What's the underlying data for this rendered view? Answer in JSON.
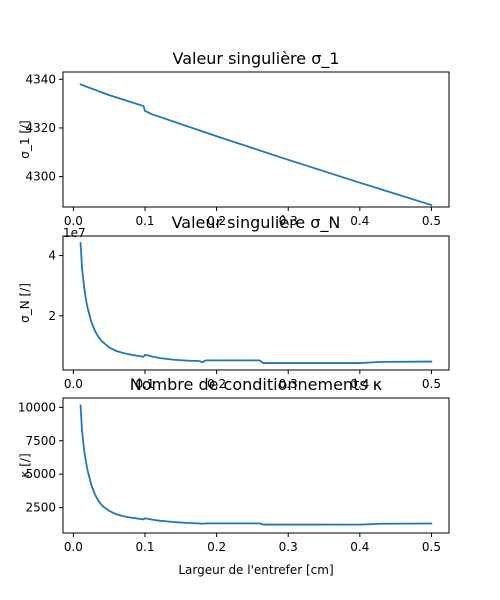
{
  "chart_data": [
    {
      "type": "line",
      "title": "Valeur singulière σ_1",
      "xlabel": "",
      "ylabel": "σ_1 [/]",
      "offset_text": "1e7",
      "xlim": [
        -0.0145,
        0.5245
      ],
      "ylim": [
        4287.5,
        4343.0
      ],
      "xticks": [
        0.0,
        0.1,
        0.2,
        0.3,
        0.4,
        0.5
      ],
      "xtick_labels": [
        "0.0",
        "0.1",
        "0.2",
        "0.3",
        "0.4",
        "0.5"
      ],
      "yticks": [
        4300,
        4320,
        4340
      ],
      "ytick_labels": [
        "4300",
        "4320",
        "4340"
      ],
      "color": "#1f77b4",
      "grid": false,
      "x": [
        0.01,
        0.05,
        0.098,
        0.1,
        0.105,
        0.11,
        0.2,
        0.3,
        0.4,
        0.5
      ],
      "y": [
        4337.9,
        4333.5,
        4329.0,
        4327.0,
        4326.3,
        4325.6,
        4316.6,
        4306.9,
        4297.5,
        4288.3
      ]
    },
    {
      "type": "line",
      "title": "Valeur singulière σ_N",
      "xlabel": "",
      "ylabel": "σ_N [/]",
      "xlim": [
        -0.0145,
        0.5245
      ],
      "ylim": [
        0.2,
        4.65
      ],
      "xticks": [
        0.0,
        0.1,
        0.2,
        0.3,
        0.4,
        0.5
      ],
      "xtick_labels": [
        "0.0",
        "0.1",
        "0.2",
        "0.3",
        "0.4",
        "0.5"
      ],
      "yticks": [
        2,
        4
      ],
      "ytick_labels": [
        "2",
        "4"
      ],
      "color": "#1f77b4",
      "grid": false,
      "x": [
        0.01,
        0.012,
        0.015,
        0.018,
        0.02,
        0.025,
        0.03,
        0.035,
        0.04,
        0.05,
        0.06,
        0.07,
        0.08,
        0.09,
        0.098,
        0.1,
        0.105,
        0.11,
        0.12,
        0.14,
        0.16,
        0.175,
        0.18,
        0.185,
        0.26,
        0.265,
        0.3,
        0.35,
        0.38,
        0.4,
        0.43,
        0.5
      ],
      "y": [
        4.42,
        3.6,
        2.95,
        2.48,
        2.25,
        1.8,
        1.5,
        1.3,
        1.15,
        0.95,
        0.83,
        0.76,
        0.71,
        0.67,
        0.64,
        0.7,
        0.68,
        0.65,
        0.6,
        0.54,
        0.51,
        0.5,
        0.46,
        0.52,
        0.52,
        0.43,
        0.43,
        0.43,
        0.43,
        0.43,
        0.47,
        0.48
      ]
    },
    {
      "type": "line",
      "title": "Nombre de conditionnements κ",
      "xlabel": "Largeur de l'entrefer [cm]",
      "ylabel": "κ [/]",
      "xlim": [
        -0.0145,
        0.5245
      ],
      "ylim": [
        600,
        10700
      ],
      "xticks": [
        0.0,
        0.1,
        0.2,
        0.3,
        0.4,
        0.5
      ],
      "xtick_labels": [
        "0.0",
        "0.1",
        "0.2",
        "0.3",
        "0.4",
        "0.5"
      ],
      "yticks": [
        2500,
        5000,
        7500,
        10000
      ],
      "ytick_labels": [
        "2500",
        "5000",
        "7500",
        "10000"
      ],
      "color": "#1f77b4",
      "grid": false,
      "x": [
        0.01,
        0.012,
        0.015,
        0.018,
        0.02,
        0.025,
        0.03,
        0.035,
        0.04,
        0.05,
        0.06,
        0.07,
        0.08,
        0.09,
        0.098,
        0.1,
        0.105,
        0.11,
        0.12,
        0.14,
        0.16,
        0.175,
        0.18,
        0.185,
        0.26,
        0.265,
        0.3,
        0.35,
        0.38,
        0.4,
        0.43,
        0.5
      ],
      "y": [
        10150,
        8300,
        6800,
        5800,
        5250,
        4200,
        3500,
        3000,
        2650,
        2250,
        2000,
        1850,
        1750,
        1680,
        1620,
        1700,
        1650,
        1600,
        1520,
        1420,
        1350,
        1320,
        1290,
        1320,
        1320,
        1230,
        1230,
        1230,
        1225,
        1225,
        1290,
        1310
      ]
    }
  ]
}
